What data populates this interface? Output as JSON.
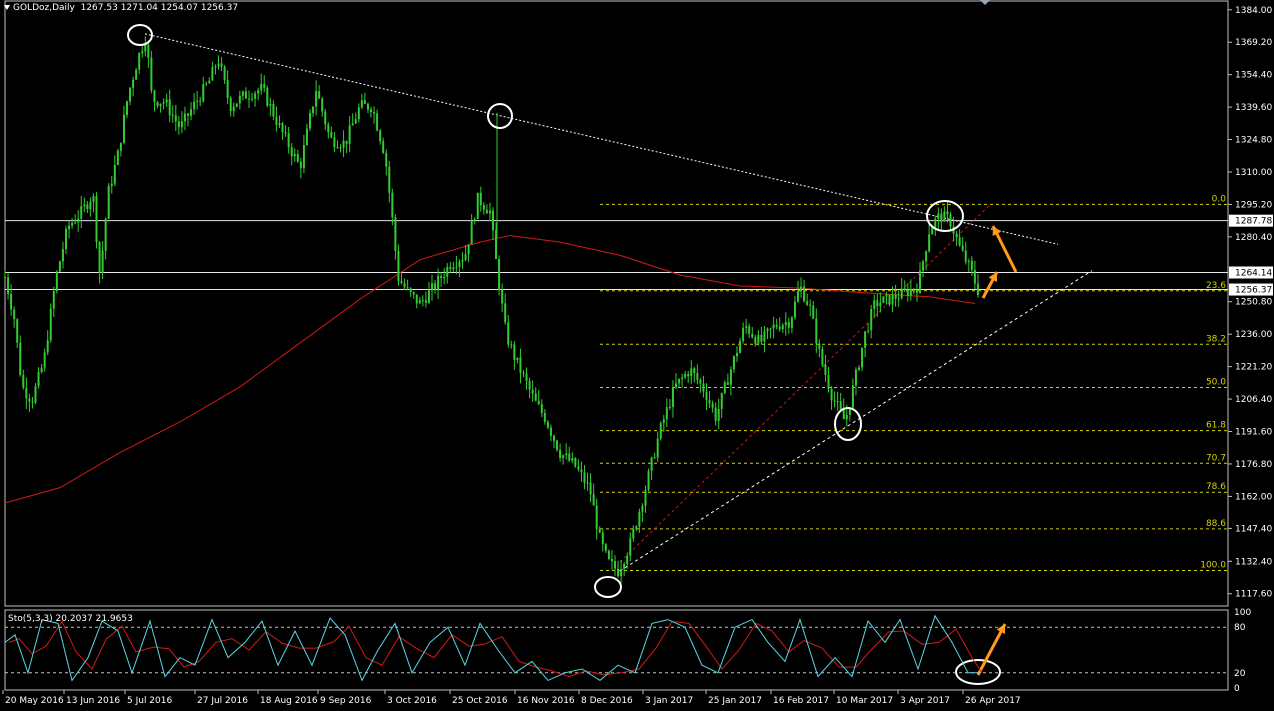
{
  "header": {
    "symbol": "GOLDoz,Daily",
    "ohlc": "1267.53 1271.04 1254.07 1256.37"
  },
  "stochastic": {
    "label": "Sto(5,3,3) 20.2037 21.9653"
  },
  "colors": {
    "background": "#000000",
    "candle": "#32cd32",
    "ma": "#d11a1a",
    "fib": "#d4d400",
    "trend": "#ffffff",
    "arrow": "#ff9a1a",
    "sto_main": "#5ad8e6",
    "sto_signal": "#d11a1a",
    "price_box": "#ffffff"
  },
  "chart_data": {
    "type": "candlestick",
    "ylim": [
      1112.0,
      1388.0
    ],
    "y_ticks": [
      "1384.00",
      "1369.20",
      "1354.40",
      "1339.60",
      "1324.80",
      "1310.00",
      "1295.20",
      "1280.40",
      "1250.80",
      "1236.00",
      "1221.20",
      "1206.40",
      "1191.60",
      "1176.80",
      "1162.00",
      "1147.40",
      "1132.40",
      "1117.60"
    ],
    "price_labels": [
      "1287.78",
      "1264.14",
      "1256.37"
    ],
    "x_labels": [
      "20 May 2016",
      "13 Jun 2016",
      "5 Jul 2016",
      "27 Jul 2016",
      "18 Aug 2016",
      "9 Sep 2016",
      "3 Oct 2016",
      "25 Oct 2016",
      "16 Nov 2016",
      "8 Dec 2016",
      "3 Jan 2017",
      "25 Jan 2017",
      "16 Feb 2017",
      "10 Mar 2017",
      "3 Apr 2017",
      "26 Apr 2017"
    ],
    "horizontal_lines": [
      1287.78,
      1264.14,
      1256.37
    ],
    "fibonacci": {
      "levels": [
        {
          "label": "0.0",
          "value": 1295.2
        },
        {
          "label": "23.6",
          "value": 1255.8
        },
        {
          "label": "38.2",
          "value": 1231.4
        },
        {
          "label": "50.0",
          "value": 1211.7
        },
        {
          "label": "61.8",
          "value": 1192.0
        },
        {
          "label": "70.7",
          "value": 1177.1
        },
        {
          "label": "78.6",
          "value": 1163.9
        },
        {
          "label": "88.6",
          "value": 1147.2
        },
        {
          "label": "100.0",
          "value": 1128.2
        }
      ]
    },
    "series": [
      {
        "kind": "close",
        "points": [
          [
            "20 May 2016",
            1252
          ],
          [
            "13 Jun 2016",
            1288
          ],
          [
            "5 Jul 2016",
            1362
          ],
          [
            "27 Jul 2016",
            1340
          ],
          [
            "18 Aug 2016",
            1346
          ],
          [
            "9 Sep 2016",
            1333
          ],
          [
            "3 Oct 2016",
            1268
          ],
          [
            "25 Oct 2016",
            1272
          ],
          [
            "16 Nov 2016",
            1224
          ],
          [
            "8 Dec 2016",
            1166
          ],
          [
            "3 Jan 2017",
            1160
          ],
          [
            "25 Jan 2017",
            1205
          ],
          [
            "16 Feb 2017",
            1238
          ],
          [
            "10 Mar 2017",
            1203
          ],
          [
            "3 Apr 2017",
            1254
          ],
          [
            "26 Apr 2017",
            1265
          ]
        ]
      }
    ],
    "stochastic_levels": [
      "100",
      "80",
      "20",
      "0"
    ]
  }
}
